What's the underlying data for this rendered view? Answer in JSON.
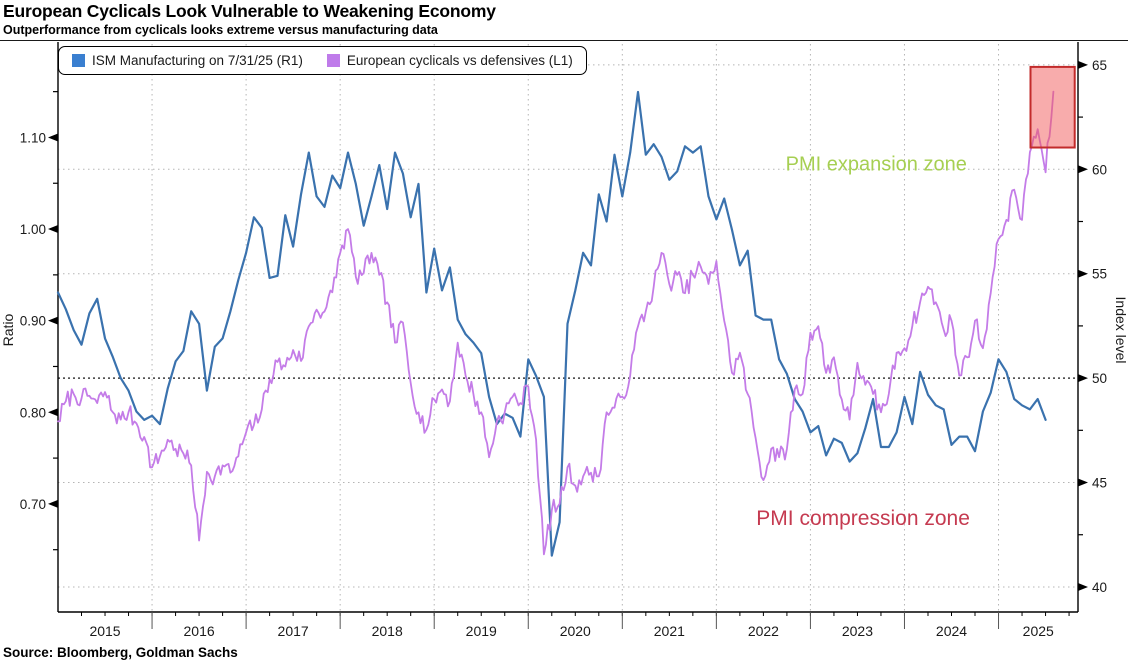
{
  "header": {
    "title": "European Cyclicals Look Vulnerable to Weakening Economy",
    "subtitle": "Outperformance from cyclicals looks extreme versus manufacturing data"
  },
  "source": "Source: Bloomberg, Goldman Sachs",
  "chart_data": {
    "type": "line",
    "title": "European Cyclicals Look Vulnerable to Weakening Economy",
    "legend": [
      {
        "label": "ISM Manufacturing on 7/31/25 (R1)",
        "color": "#3a7fd0",
        "axis": "right"
      },
      {
        "label": "European cyclicals vs defensives (L1)",
        "color": "#bf7bea",
        "axis": "left"
      }
    ],
    "x_axis": {
      "range": [
        2015.0,
        2025.845
      ],
      "year_labels": [
        "2015",
        "2016",
        "2017",
        "2018",
        "2019",
        "2020",
        "2021",
        "2022",
        "2023",
        "2024",
        "2025"
      ],
      "gridline_years": [
        2016,
        2017,
        2018,
        2019,
        2020,
        2021,
        2022,
        2023,
        2024,
        2025
      ]
    },
    "left_axis": {
      "label": "Ratio",
      "range": [
        0.582,
        1.202
      ],
      "tick_values": [
        0.7,
        0.8,
        0.9,
        1.0,
        1.1
      ],
      "tick_labels": [
        "0.70",
        "0.80",
        "0.90",
        "1.00",
        "1.10"
      ],
      "minor_ticks": [
        0.65,
        0.75,
        0.85,
        0.95,
        1.05,
        1.15
      ]
    },
    "right_axis": {
      "label": "Index level",
      "range": [
        38.8,
        66.0
      ],
      "tick_values": [
        40,
        45,
        50,
        55,
        60,
        65
      ],
      "tick_labels": [
        "40",
        "45",
        "50",
        "55",
        "60",
        "65"
      ],
      "minor_ticks": [
        42.5,
        47.5,
        52.5,
        57.5,
        62.5
      ],
      "gridline_values": [
        40,
        45,
        55,
        60,
        65
      ]
    },
    "threshold_line": {
      "value": 50,
      "axis": "right"
    },
    "series": [
      {
        "name": "ISM Manufacturing",
        "axis": "right",
        "color": "#3a72ae",
        "width": 2.2,
        "start_year": 2015.0,
        "points_per_year": 12,
        "noise": 0,
        "values": [
          54.1,
          53.3,
          52.3,
          51.6,
          53.1,
          53.8,
          51.9,
          51.0,
          50.0,
          49.4,
          48.4,
          48.0,
          48.2,
          47.8,
          49.5,
          50.8,
          51.3,
          53.2,
          52.6,
          49.4,
          51.5,
          51.9,
          53.2,
          54.7,
          56.0,
          57.7,
          57.2,
          54.8,
          54.9,
          57.8,
          56.3,
          58.8,
          60.8,
          58.7,
          58.2,
          59.7,
          59.1,
          60.8,
          59.3,
          57.3,
          58.7,
          60.2,
          58.1,
          60.8,
          59.8,
          57.7,
          59.3,
          54.1,
          56.2,
          54.2,
          55.3,
          52.8,
          52.1,
          51.7,
          51.2,
          49.1,
          47.8,
          48.3,
          48.1,
          47.2,
          50.9,
          50.1,
          49.1,
          41.5,
          43.1,
          52.6,
          54.2,
          56.0,
          55.4,
          58.8,
          57.5,
          60.7,
          58.7,
          60.8,
          63.7,
          60.7,
          61.2,
          60.6,
          59.5,
          59.9,
          61.1,
          60.8,
          61.1,
          58.7,
          57.6,
          58.6,
          57.1,
          55.4,
          56.1,
          53.0,
          52.8,
          52.8,
          50.9,
          50.2,
          49.0,
          48.4,
          47.4,
          47.7,
          46.3,
          47.1,
          46.9,
          46.0,
          46.4,
          47.6,
          49.0,
          46.7,
          46.7,
          47.4,
          49.1,
          47.8,
          50.3,
          49.2,
          48.7,
          48.5,
          46.8,
          47.2,
          47.2,
          46.5,
          48.4,
          49.3,
          50.9,
          50.3,
          49.0,
          48.7,
          48.5,
          49.0,
          48.0
        ]
      },
      {
        "name": "European cyclicals vs defensives",
        "axis": "left",
        "color": "#c47ce8",
        "width": 1.8,
        "start_year": 2015.0,
        "points_per_year": 12,
        "noise": 0.01,
        "values": [
          0.79,
          0.812,
          0.82,
          0.815,
          0.818,
          0.81,
          0.822,
          0.8,
          0.792,
          0.8,
          0.788,
          0.773,
          0.74,
          0.752,
          0.77,
          0.76,
          0.755,
          0.742,
          0.66,
          0.735,
          0.73,
          0.742,
          0.734,
          0.752,
          0.778,
          0.786,
          0.803,
          0.836,
          0.855,
          0.85,
          0.868,
          0.856,
          0.894,
          0.912,
          0.91,
          0.931,
          0.974,
          1.0,
          0.948,
          0.952,
          0.974,
          0.95,
          0.92,
          0.876,
          0.898,
          0.832,
          0.8,
          0.781,
          0.814,
          0.825,
          0.812,
          0.876,
          0.84,
          0.82,
          0.8,
          0.751,
          0.79,
          0.8,
          0.817,
          0.81,
          0.828,
          0.77,
          0.645,
          0.693,
          0.7,
          0.74,
          0.72,
          0.73,
          0.734,
          0.73,
          0.8,
          0.805,
          0.817,
          0.84,
          0.894,
          0.91,
          0.937,
          0.974,
          0.94,
          0.95,
          0.93,
          0.95,
          0.959,
          0.94,
          0.965,
          0.9,
          0.843,
          0.865,
          0.82,
          0.772,
          0.726,
          0.76,
          0.751,
          0.76,
          0.825,
          0.82,
          0.887,
          0.894,
          0.843,
          0.86,
          0.814,
          0.792,
          0.854,
          0.83,
          0.82,
          0.8,
          0.82,
          0.865,
          0.87,
          0.894,
          0.92,
          0.937,
          0.92,
          0.89,
          0.9,
          0.84,
          0.86,
          0.9,
          0.87,
          0.93,
          0.989,
          1.01,
          1.043,
          1.01,
          1.084,
          1.109,
          1.062,
          1.15
        ]
      }
    ],
    "annotations": [
      {
        "text": "PMI expansion zone",
        "color": "#a6cf52",
        "x": 2023.7,
        "y": 1.07,
        "axis": "left",
        "size": 20
      },
      {
        "text": "PMI compression zone",
        "color": "#c53a50",
        "x": 2023.56,
        "y": 0.684,
        "axis": "left",
        "size": 21
      }
    ],
    "highlight_box": {
      "x0": 2025.34,
      "x1": 2025.81,
      "y0": 1.089,
      "y1": 1.177,
      "axis": "left",
      "fill": "rgba(242,90,90,0.5)",
      "stroke": "#c22b2b"
    }
  }
}
